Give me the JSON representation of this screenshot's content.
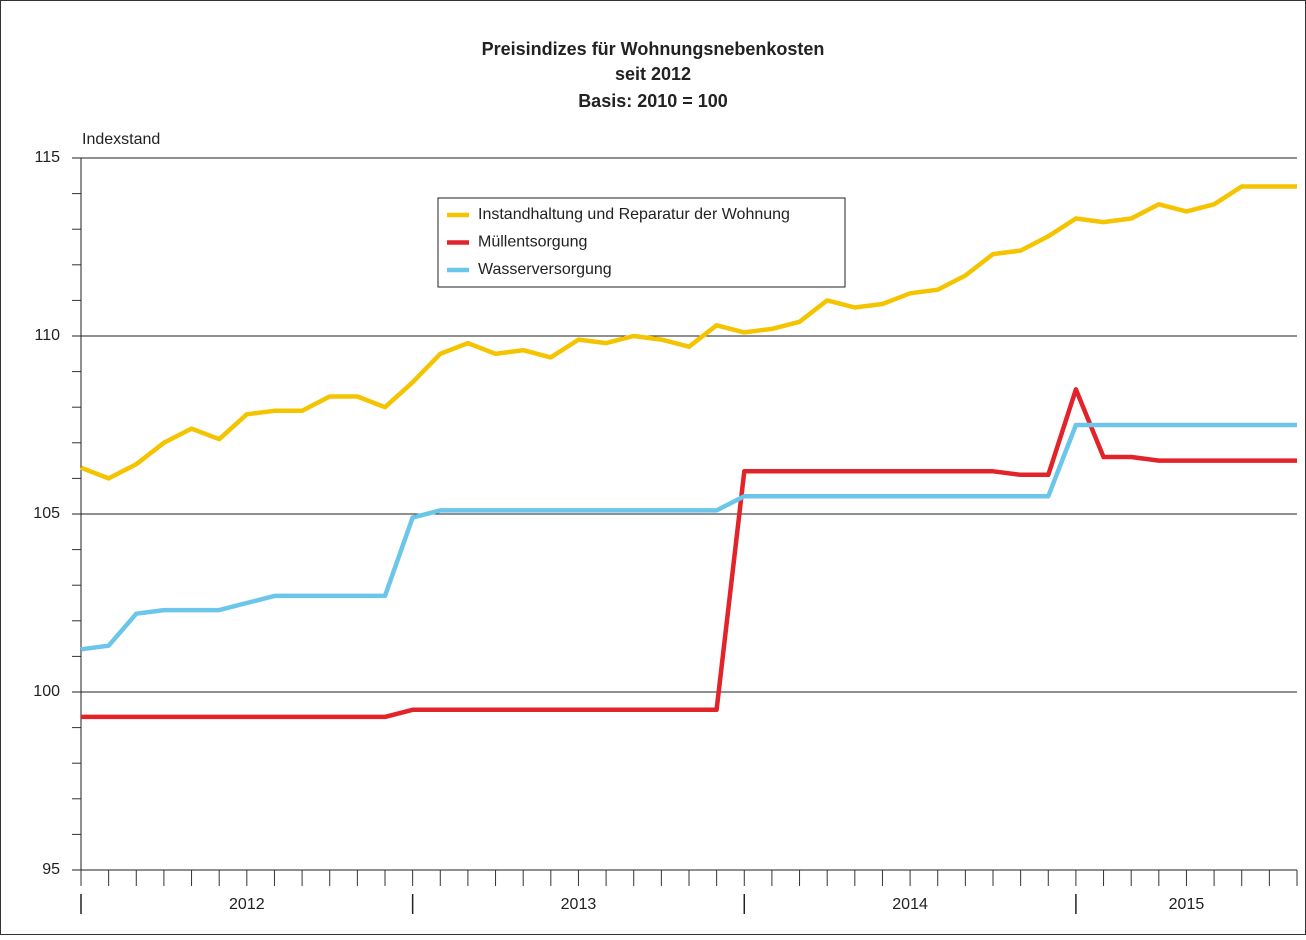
{
  "chart_data": {
    "type": "line",
    "title": "Preisindizes für Wohnungsnebenkosten",
    "subtitle": "seit 2012",
    "subtitle2": "Basis: 2010 = 100",
    "ylabel": "Indexstand",
    "categories": [
      null,
      null,
      null,
      null,
      null,
      null,
      null,
      null,
      null,
      null,
      null,
      null,
      null,
      null,
      null,
      null,
      null,
      null,
      null,
      null,
      null,
      null,
      null,
      null,
      null,
      null,
      null,
      null,
      null,
      null,
      null,
      null,
      null,
      null,
      null,
      null,
      null,
      null,
      null,
      null,
      null,
      null,
      null,
      null,
      null
    ],
    "year_labels": [
      "2012",
      "2013",
      "2014",
      "2015"
    ],
    "ylim": [
      95,
      115
    ],
    "yticks": [
      95,
      100,
      105,
      110,
      115
    ],
    "minor_yticks": [
      96,
      97,
      98,
      99,
      101,
      102,
      103,
      104,
      106,
      107,
      108,
      109,
      111,
      112,
      113,
      114
    ],
    "grid": true,
    "legend": "top-center",
    "series": [
      {
        "name": "Instandhaltung und Reparatur der Wohnung",
        "color": "#f5c400",
        "values": [
          106.3,
          106.0,
          106.4,
          107.0,
          107.4,
          107.1,
          107.8,
          107.9,
          107.9,
          108.3,
          108.3,
          108.0,
          108.7,
          109.5,
          109.8,
          109.5,
          109.6,
          109.4,
          109.9,
          109.8,
          110.0,
          109.9,
          109.7,
          110.3,
          110.1,
          110.2,
          110.4,
          111.0,
          110.8,
          110.9,
          111.2,
          111.3,
          111.7,
          112.3,
          112.4,
          112.8,
          113.3,
          113.2,
          113.3,
          113.7,
          113.5,
          113.7,
          114.2,
          114.2,
          114.2
        ]
      },
      {
        "name": "Müllentsorgung",
        "color": "#e2232a",
        "values": [
          99.3,
          99.3,
          99.3,
          99.3,
          99.3,
          99.3,
          99.3,
          99.3,
          99.3,
          99.3,
          99.3,
          99.3,
          99.5,
          99.5,
          99.5,
          99.5,
          99.5,
          99.5,
          99.5,
          99.5,
          99.5,
          99.5,
          99.5,
          99.5,
          106.2,
          106.2,
          106.2,
          106.2,
          106.2,
          106.2,
          106.2,
          106.2,
          106.2,
          106.2,
          106.1,
          106.1,
          108.5,
          106.6,
          106.6,
          106.5,
          106.5,
          106.5,
          106.5,
          106.5,
          106.5
        ]
      },
      {
        "name": "Wasserversorgung",
        "color": "#6cc6ea",
        "values": [
          101.2,
          101.3,
          102.2,
          102.3,
          102.3,
          102.3,
          102.5,
          102.7,
          102.7,
          102.7,
          102.7,
          102.7,
          104.9,
          105.1,
          105.1,
          105.1,
          105.1,
          105.1,
          105.1,
          105.1,
          105.1,
          105.1,
          105.1,
          105.1,
          105.5,
          105.5,
          105.5,
          105.5,
          105.5,
          105.5,
          105.5,
          105.5,
          105.5,
          105.5,
          105.5,
          105.5,
          107.5,
          107.5,
          107.5,
          107.5,
          107.5,
          107.5,
          107.5,
          107.5,
          107.5
        ]
      }
    ]
  }
}
